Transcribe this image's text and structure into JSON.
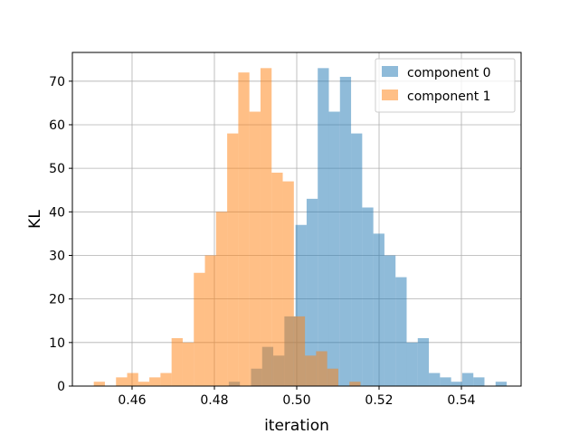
{
  "chart_data": {
    "type": "histogram",
    "xlabel": "iteration",
    "ylabel": "KL",
    "xlim": [
      0.4455,
      0.5545
    ],
    "ylim": [
      0,
      76.6
    ],
    "xticks": [
      0.46,
      0.48,
      0.5,
      0.52,
      0.54
    ],
    "xtick_labels": [
      "0.46",
      "0.48",
      "0.50",
      "0.52",
      "0.54"
    ],
    "yticks": [
      0,
      10,
      20,
      30,
      40,
      50,
      60,
      70
    ],
    "ytick_labels": [
      "0",
      "10",
      "20",
      "30",
      "40",
      "50",
      "60",
      "70"
    ],
    "grid": true,
    "legend_position": "top-right",
    "series": [
      {
        "name": "component 0",
        "color": "#1f77b4",
        "alpha": 0.5,
        "bin_edges": [
          0.4835,
          0.4862,
          0.4889,
          0.4916,
          0.4943,
          0.497,
          0.4997,
          0.5024,
          0.5051,
          0.5078,
          0.5105,
          0.5132,
          0.5159,
          0.5186,
          0.5213,
          0.524,
          0.5267,
          0.5294,
          0.5321,
          0.5348,
          0.5375,
          0.5402,
          0.5429,
          0.5456,
          0.5483,
          0.551
        ],
        "counts": [
          1,
          0,
          4,
          9,
          7,
          16,
          37,
          43,
          73,
          63,
          71,
          58,
          41,
          35,
          30,
          25,
          10,
          11,
          3,
          2,
          1,
          3,
          2,
          0,
          1
        ]
      },
      {
        "name": "component 1",
        "color": "#ff7f0e",
        "alpha": 0.5,
        "bin_edges": [
          0.4507,
          0.4534,
          0.4561,
          0.4588,
          0.4615,
          0.4642,
          0.4669,
          0.4696,
          0.4723,
          0.475,
          0.4777,
          0.4804,
          0.4831,
          0.4858,
          0.4885,
          0.4912,
          0.4939,
          0.4966,
          0.4993,
          0.502,
          0.5047,
          0.5074,
          0.5101,
          0.5128,
          0.5155,
          0.5182
        ],
        "counts": [
          1,
          0,
          2,
          3,
          1,
          2,
          3,
          11,
          10,
          26,
          30,
          40,
          58,
          72,
          63,
          73,
          49,
          47,
          16,
          7,
          8,
          4,
          0,
          1,
          0
        ]
      }
    ]
  }
}
